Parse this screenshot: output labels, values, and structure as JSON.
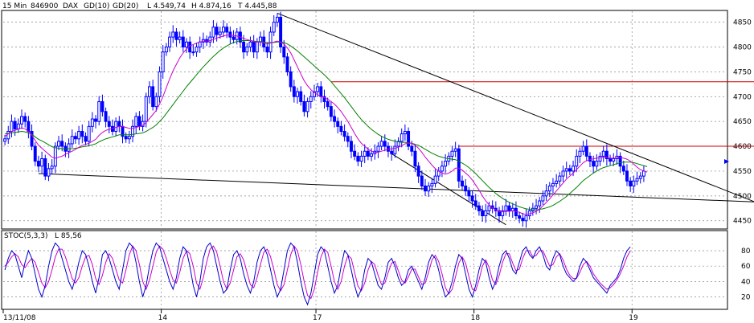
{
  "header": {
    "interval": "15 Min",
    "code": "846900",
    "symbol": "DAX",
    "ma1_label": "GD(10)",
    "ma2_label": "GD(20)",
    "low": "L 4.549,74",
    "high": "H 4.874,16",
    "last": "T 4.445,88"
  },
  "colors": {
    "candle": "#0000ff",
    "ma1": "#cc00cc",
    "ma2": "#008000",
    "stoch_k": "#0000cc",
    "stoch_d": "#cc00cc",
    "grid": "#888888",
    "resistance": "#cc0000",
    "trendline": "#000000"
  },
  "chart_data": [
    {
      "type": "candlestick",
      "title": "",
      "x_ticks": [
        {
          "bar": 0,
          "label": "13/11/08"
        },
        {
          "bar": 47,
          "label": "14"
        },
        {
          "bar": 93,
          "label": "17"
        },
        {
          "bar": 140,
          "label": "18"
        },
        {
          "bar": 187,
          "label": "19"
        }
      ],
      "y_ticks": [
        4450,
        4500,
        4550,
        4600,
        4650,
        4700,
        4750,
        4800,
        4850
      ],
      "ylim": [
        4435,
        4872
      ],
      "closes": [
        4615,
        4630,
        4650,
        4635,
        4645,
        4660,
        4650,
        4630,
        4600,
        4570,
        4560,
        4575,
        4540,
        4555,
        4560,
        4600,
        4610,
        4600,
        4590,
        4605,
        4620,
        4615,
        4630,
        4620,
        4610,
        4640,
        4655,
        4650,
        4690,
        4670,
        4650,
        4640,
        4630,
        4650,
        4640,
        4620,
        4615,
        4620,
        4640,
        4660,
        4640,
        4650,
        4700,
        4720,
        4680,
        4700,
        4750,
        4790,
        4800,
        4820,
        4830,
        4815,
        4820,
        4800,
        4810,
        4790,
        4790,
        4800,
        4810,
        4815,
        4810,
        4820,
        4840,
        4825,
        4830,
        4840,
        4830,
        4820,
        4815,
        4830,
        4810,
        4790,
        4800,
        4810,
        4790,
        4810,
        4820,
        4800,
        4790,
        4830,
        4850,
        4860,
        4800,
        4780,
        4750,
        4720,
        4700,
        4710,
        4690,
        4670,
        4690,
        4700,
        4710,
        4720,
        4700,
        4690,
        4680,
        4660,
        4650,
        4640,
        4630,
        4620,
        4610,
        4590,
        4580,
        4570,
        4580,
        4590,
        4580,
        4585,
        4590,
        4600,
        4610,
        4600,
        4590,
        4585,
        4600,
        4610,
        4625,
        4630,
        4600,
        4590,
        4560,
        4540,
        4520,
        4510,
        4520,
        4525,
        4540,
        4550,
        4560,
        4570,
        4580,
        4590,
        4595,
        4530,
        4520,
        4510,
        4500,
        4490,
        4480,
        4470,
        4460,
        4470,
        4480,
        4475,
        4470,
        4460,
        4470,
        4480,
        4470,
        4475,
        4460,
        4455,
        4450,
        4460,
        4470,
        4475,
        4480,
        4490,
        4500,
        4510,
        4520,
        4525,
        4530,
        4540,
        4550,
        4555,
        4550,
        4560,
        4580,
        4590,
        4600,
        4580,
        4570,
        4560,
        4570,
        4580,
        4590,
        4575,
        4570,
        4575,
        4580,
        4560,
        4550,
        4530,
        4520,
        4530,
        4535,
        4540,
        4550
      ],
      "ma1": [
        4620,
        4625,
        4630,
        4632,
        4635,
        4637,
        4635,
        4630,
        4622,
        4612,
        4602,
        4596,
        4590,
        4584,
        4578,
        4576,
        4578,
        4580,
        4584,
        4587,
        4590,
        4594,
        4598,
        4602,
        4604,
        4606,
        4610,
        4614,
        4622,
        4628,
        4632,
        4634,
        4636,
        4638,
        4640,
        4640,
        4638,
        4636,
        4636,
        4638,
        4640,
        4642,
        4648,
        4656,
        4664,
        4672,
        4685,
        4700,
        4718,
        4736,
        4752,
        4765,
        4778,
        4788,
        4796,
        4802,
        4805,
        4808,
        4810,
        4812,
        4812,
        4813,
        4815,
        4818,
        4820,
        4822,
        4824,
        4824,
        4823,
        4822,
        4820,
        4817,
        4815,
        4813,
        4811,
        4810,
        4810,
        4808,
        4806,
        4808,
        4810,
        4812,
        4810,
        4806,
        4798,
        4788,
        4774,
        4760,
        4746,
        4732,
        4722,
        4714,
        4708,
        4704,
        4700,
        4698,
        4695,
        4690,
        4685,
        4678,
        4670,
        4660,
        4650,
        4638,
        4626,
        4615,
        4606,
        4600,
        4594,
        4590,
        4588,
        4588,
        4590,
        4592,
        4594,
        4595,
        4596,
        4598,
        4601,
        4605,
        4606,
        4606,
        4602,
        4596,
        4588,
        4578,
        4570,
        4562,
        4555,
        4550,
        4546,
        4544,
        4546,
        4550,
        4556,
        4556,
        4552,
        4546,
        4540,
        4532,
        4522,
        4512,
        4500,
        4490,
        4482,
        4476,
        4472,
        4468,
        4468,
        4469,
        4469,
        4470,
        4469,
        4467,
        4464,
        4463,
        4464,
        4466,
        4469,
        4473,
        4480,
        4487,
        4494,
        4502,
        4510,
        4518,
        4526,
        4534,
        4540,
        4546,
        4553,
        4560,
        4567,
        4571,
        4573,
        4575,
        4576,
        4577,
        4578,
        4577,
        4576,
        4576,
        4576,
        4577,
        4576,
        4574,
        4570,
        4564,
        4558,
        4553,
        4550,
        4548
      ],
      "ma2": [
        4625,
        4626,
        4627,
        4628,
        4629,
        4630,
        4629,
        4627,
        4624,
        4619,
        4614,
        4611,
        4607,
        4603,
        4599,
        4597,
        4596,
        4595,
        4595,
        4595,
        4595,
        4596,
        4597,
        4599,
        4600,
        4601,
        4603,
        4605,
        4609,
        4612,
        4615,
        4617,
        4619,
        4621,
        4623,
        4623,
        4623,
        4623,
        4624,
        4625,
        4626,
        4627,
        4630,
        4634,
        4638,
        4643,
        4650,
        4657,
        4666,
        4675,
        4684,
        4693,
        4702,
        4711,
        4720,
        4728,
        4736,
        4744,
        4752,
        4760,
        4767,
        4774,
        4781,
        4787,
        4793,
        4798,
        4802,
        4806,
        4809,
        4811,
        4813,
        4813,
        4813,
        4813,
        4812,
        4811,
        4811,
        4810,
        4809,
        4809,
        4809,
        4810,
        4810,
        4809,
        4806,
        4802,
        4797,
        4792,
        4786,
        4780,
        4774,
        4768,
        4762,
        4756,
        4750,
        4744,
        4737,
        4730,
        4722,
        4714,
        4706,
        4698,
        4689,
        4680,
        4671,
        4662,
        4654,
        4647,
        4640,
        4634,
        4629,
        4624,
        4620,
        4617,
        4614,
        4612,
        4610,
        4609,
        4608,
        4608,
        4607,
        4606,
        4604,
        4602,
        4598,
        4594,
        4590,
        4586,
        4583,
        4580,
        4578,
        4576,
        4575,
        4574,
        4573,
        4570,
        4566,
        4562,
        4557,
        4551,
        4545,
        4538,
        4531,
        4524,
        4517,
        4511,
        4505,
        4500,
        4495,
        4491,
        4487,
        4484,
        4481,
        4478,
        4476,
        4474,
        4473,
        4472,
        4472,
        4473,
        4474,
        4476,
        4478,
        4481,
        4485,
        4489,
        4494,
        4499,
        4505,
        4511,
        4517,
        4524,
        4531,
        4536,
        4541,
        4546,
        4550,
        4554,
        4557,
        4559,
        4561,
        4563,
        4565,
        4567,
        4568,
        4568,
        4568,
        4567,
        4565,
        4563,
        4561,
        4559
      ]
    },
    {
      "type": "line",
      "title": "STOC(5,3,3)",
      "value_label": "L 85,56",
      "y_ticks": [
        20,
        40,
        60,
        80
      ],
      "ylim": [
        5,
        105
      ],
      "series": [
        {
          "name": "K",
          "values": [
            55,
            70,
            80,
            75,
            60,
            45,
            65,
            80,
            70,
            50,
            30,
            20,
            35,
            60,
            80,
            90,
            85,
            70,
            55,
            40,
            30,
            45,
            65,
            80,
            75,
            60,
            40,
            25,
            45,
            75,
            80,
            70,
            55,
            40,
            30,
            55,
            80,
            90,
            85,
            65,
            40,
            20,
            35,
            60,
            80,
            90,
            85,
            70,
            55,
            40,
            30,
            45,
            70,
            85,
            80,
            60,
            35,
            20,
            40,
            70,
            85,
            90,
            80,
            60,
            40,
            25,
            30,
            55,
            75,
            80,
            70,
            50,
            35,
            25,
            40,
            65,
            80,
            85,
            75,
            55,
            35,
            20,
            30,
            55,
            80,
            90,
            85,
            65,
            40,
            20,
            10,
            25,
            50,
            75,
            85,
            80,
            60,
            40,
            25,
            35,
            60,
            80,
            75,
            55,
            35,
            20,
            30,
            55,
            70,
            65,
            50,
            35,
            30,
            45,
            65,
            70,
            60,
            45,
            35,
            40,
            55,
            60,
            50,
            40,
            30,
            45,
            65,
            75,
            70,
            55,
            35,
            20,
            25,
            40,
            60,
            75,
            70,
            50,
            30,
            20,
            35,
            55,
            70,
            65,
            45,
            30,
            40,
            60,
            75,
            80,
            70,
            55,
            50,
            65,
            80,
            85,
            75,
            70,
            80,
            85,
            75,
            60,
            55,
            70,
            80,
            75,
            60,
            50,
            45,
            40,
            45,
            60,
            70,
            65,
            55,
            45,
            40,
            35,
            30,
            25,
            35,
            40,
            45,
            55,
            70,
            80,
            85
          ]
        },
        {
          "name": "D",
          "values": [
            60,
            65,
            72,
            76,
            72,
            62,
            58,
            65,
            70,
            65,
            52,
            38,
            32,
            40,
            55,
            72,
            82,
            82,
            72,
            58,
            44,
            38,
            45,
            60,
            72,
            74,
            62,
            44,
            36,
            48,
            65,
            76,
            70,
            56,
            42,
            38,
            55,
            75,
            86,
            80,
            62,
            40,
            30,
            42,
            60,
            78,
            86,
            82,
            70,
            55,
            42,
            38,
            52,
            70,
            80,
            76,
            60,
            38,
            30,
            45,
            65,
            82,
            86,
            78,
            60,
            40,
            30,
            38,
            55,
            72,
            76,
            68,
            52,
            36,
            32,
            45,
            62,
            78,
            82,
            72,
            55,
            36,
            28,
            36,
            55,
            75,
            86,
            80,
            62,
            40,
            22,
            18,
            30,
            52,
            72,
            82,
            78,
            60,
            40,
            30,
            40,
            60,
            74,
            70,
            52,
            34,
            28,
            38,
            55,
            66,
            62,
            48,
            36,
            38,
            52,
            64,
            66,
            54,
            42,
            38,
            46,
            56,
            56,
            46,
            36,
            38,
            52,
            68,
            74,
            66,
            50,
            32,
            24,
            30,
            46,
            64,
            72,
            64,
            46,
            30,
            28,
            42,
            60,
            68,
            58,
            42,
            36,
            48,
            65,
            76,
            76,
            64,
            54,
            56,
            70,
            80,
            80,
            72,
            74,
            80,
            80,
            70,
            60,
            62,
            72,
            76,
            68,
            56,
            48,
            44,
            44,
            52,
            62,
            66,
            60,
            50,
            44,
            38,
            34,
            30,
            32,
            36,
            42,
            50,
            60,
            72,
            80
          ]
        }
      ]
    }
  ]
}
